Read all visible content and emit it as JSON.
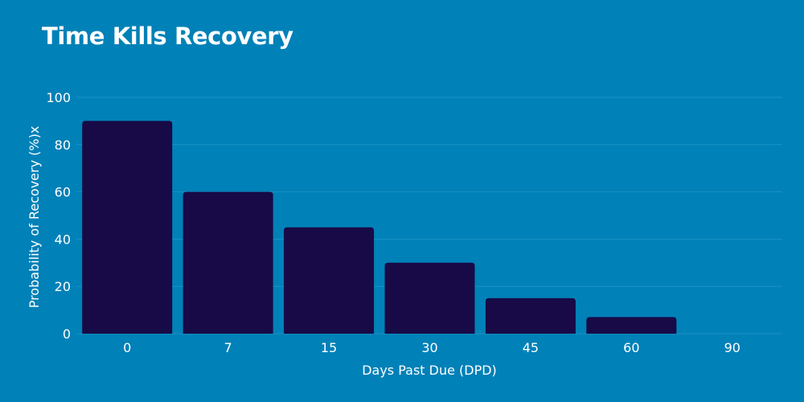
{
  "colors": {
    "background": "#0081b8",
    "bar": "#170a47",
    "grid": "#1a93c4",
    "text": "#ffffff"
  },
  "chart_data": {
    "type": "bar",
    "title": "Time Kills Recovery",
    "xlabel": "Days Past Due (DPD)",
    "ylabel": "Probability of Recovery (%)x",
    "categories": [
      "0",
      "7",
      "15",
      "30",
      "45",
      "60",
      "90"
    ],
    "values": [
      90,
      60,
      45,
      30,
      15,
      7,
      0
    ],
    "ylim": [
      0,
      100
    ],
    "yticks": [
      "0",
      "20",
      "40",
      "60",
      "80",
      "100"
    ],
    "grid": true,
    "legend": "none"
  }
}
